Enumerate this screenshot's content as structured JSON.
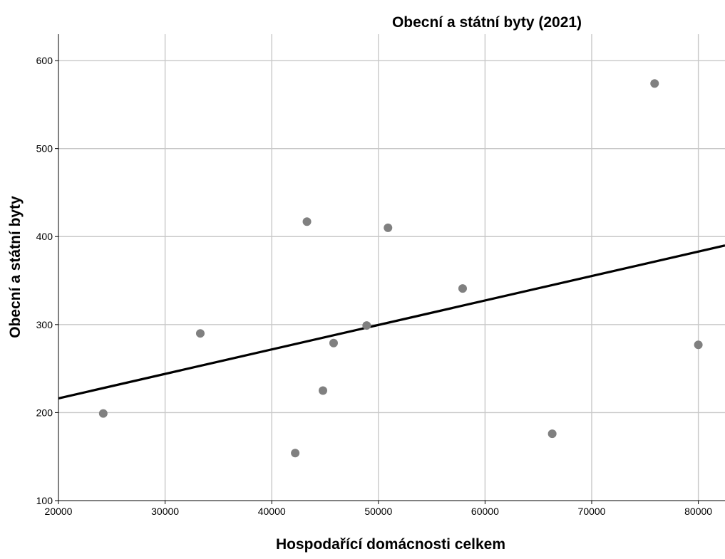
{
  "chart_data": {
    "type": "scatter",
    "title": "Obecní a státní byty (2021)",
    "xlabel": "Hospodařící domácnosti celkem",
    "ylabel": "Obecní a státní byty",
    "xlim": [
      20000,
      82500
    ],
    "ylim": [
      100,
      630
    ],
    "x_ticks": [
      20000,
      30000,
      40000,
      50000,
      60000,
      70000,
      80000
    ],
    "y_ticks": [
      100,
      200,
      300,
      400,
      500,
      600
    ],
    "grid": true,
    "legend": "none",
    "point_color": "#808080",
    "line_color": "#000000",
    "points": [
      {
        "x": 24200,
        "y": 199
      },
      {
        "x": 33300,
        "y": 290
      },
      {
        "x": 42200,
        "y": 154
      },
      {
        "x": 43300,
        "y": 417
      },
      {
        "x": 44800,
        "y": 225
      },
      {
        "x": 45800,
        "y": 279
      },
      {
        "x": 48900,
        "y": 299
      },
      {
        "x": 50900,
        "y": 410
      },
      {
        "x": 57900,
        "y": 341
      },
      {
        "x": 66300,
        "y": 176
      },
      {
        "x": 75900,
        "y": 574
      },
      {
        "x": 80000,
        "y": 277
      }
    ],
    "fit_line": {
      "intercept": 160.6,
      "slope": 0.0027797
    }
  }
}
